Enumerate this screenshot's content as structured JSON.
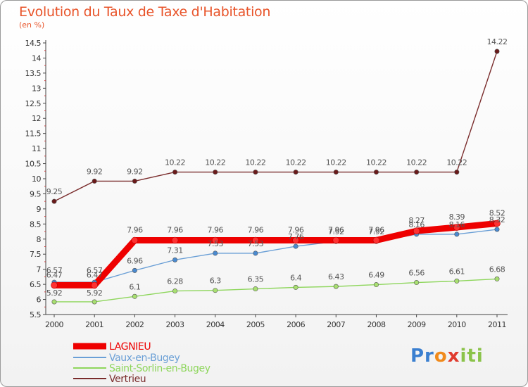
{
  "chart_data": {
    "type": "line",
    "title": "Evolution du Taux de Taxe d'Habitation",
    "subtitle": "(en %)",
    "x": [
      "2000",
      "2001",
      "2002",
      "2003",
      "2004",
      "2005",
      "2006",
      "2007",
      "2008",
      "2009",
      "2010",
      "2011"
    ],
    "ylim": [
      5.5,
      14.5
    ],
    "yticks": [
      "5.5",
      "6",
      "6.5",
      "7",
      "7.5",
      "8",
      "8.5",
      "9",
      "9.5",
      "10",
      "10.5",
      "11",
      "11.5",
      "12",
      "12.5",
      "13",
      "13.5",
      "14",
      "14.5"
    ],
    "grid": false,
    "legend_position": "bottom-left",
    "series": [
      {
        "name": "LAGNIEU",
        "color": "#ee0000",
        "values": [
          6.47,
          6.47,
          7.96,
          7.96,
          7.96,
          7.96,
          7.96,
          7.96,
          7.96,
          8.27,
          8.39,
          8.52
        ]
      },
      {
        "name": "Vaux-en-Bugey",
        "color": "#6a9fd6",
        "values": [
          6.57,
          6.57,
          6.96,
          7.31,
          7.53,
          7.53,
          7.76,
          7.92,
          7.92,
          8.16,
          8.16,
          8.32
        ]
      },
      {
        "name": "Saint-Sorlin-en-Bugey",
        "color": "#8ed65c",
        "values": [
          5.92,
          5.92,
          6.1,
          6.28,
          6.3,
          6.35,
          6.4,
          6.43,
          6.49,
          6.56,
          6.61,
          6.68
        ]
      },
      {
        "name": "Vertrieu",
        "color": "#7a2c2c",
        "values": [
          9.25,
          9.92,
          9.92,
          10.22,
          10.22,
          10.22,
          10.22,
          10.22,
          10.22,
          10.22,
          10.22,
          14.22
        ]
      }
    ]
  },
  "logo": {
    "p1": "Pr",
    "p2": "o",
    "p3": "x",
    "p4": "iti"
  }
}
